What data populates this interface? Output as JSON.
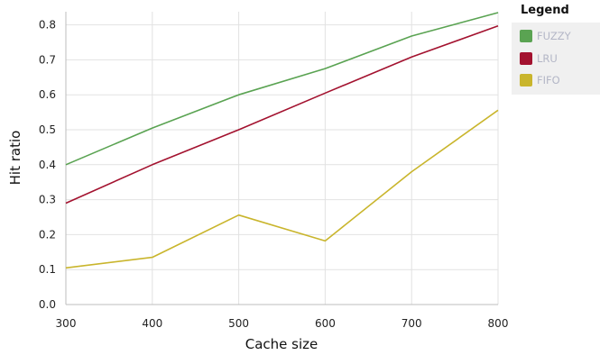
{
  "chart_data": {
    "type": "line",
    "title": "",
    "xlabel": "Cache size",
    "ylabel": "Hit ratio",
    "x": [
      300,
      400,
      500,
      600,
      700,
      800
    ],
    "xlim": [
      300,
      800
    ],
    "ylim": [
      0,
      0.84
    ],
    "xticks": [
      "300",
      "400",
      "500",
      "600",
      "700",
      "800"
    ],
    "yticks": [
      "0.0",
      "0.1",
      "0.2",
      "0.3",
      "0.4",
      "0.5",
      "0.6",
      "0.7",
      "0.8"
    ],
    "grid": true,
    "legend_title": "Legend",
    "legend_position": "top-right",
    "series": [
      {
        "name": "FUZZY",
        "color": "#5aa352",
        "values": [
          0.4,
          0.505,
          0.6,
          0.675,
          0.768,
          0.835
        ]
      },
      {
        "name": "LRU",
        "color": "#a3122f",
        "values": [
          0.29,
          0.4,
          0.5,
          0.605,
          0.708,
          0.797
        ]
      },
      {
        "name": "FIFO",
        "color": "#c9b52c",
        "values": [
          0.105,
          0.135,
          0.256,
          0.182,
          0.38,
          0.556
        ]
      }
    ]
  }
}
